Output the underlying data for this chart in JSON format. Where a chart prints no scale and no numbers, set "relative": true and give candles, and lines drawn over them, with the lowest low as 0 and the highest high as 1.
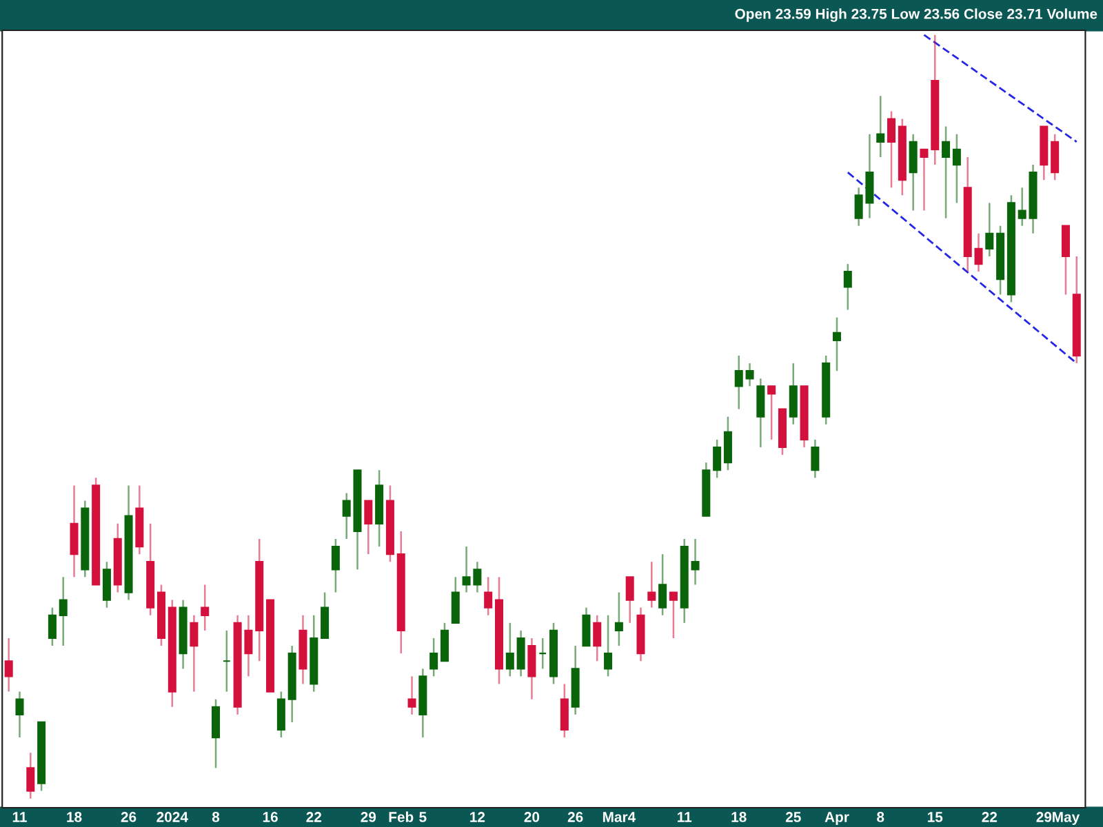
{
  "chart_data": {
    "type": "candlestick",
    "relative": true,
    "grid": false,
    "legend": false,
    "annotations": [
      "Open 23.59 High 23.75 Low 23.56 Close 23.71 Volume"
    ],
    "categories": [
      null,
      "11",
      null,
      null,
      null,
      null,
      "18",
      null,
      null,
      null,
      null,
      "26",
      null,
      null,
      null,
      "2024",
      null,
      null,
      null,
      "8",
      null,
      null,
      null,
      null,
      "16",
      null,
      null,
      null,
      "22",
      null,
      null,
      null,
      null,
      "29",
      null,
      null,
      "Feb",
      null,
      "5",
      null,
      null,
      null,
      null,
      "12",
      null,
      null,
      null,
      null,
      "20",
      null,
      null,
      null,
      "26",
      null,
      null,
      null,
      "Mar4",
      null,
      null,
      null,
      null,
      null,
      "11",
      null,
      null,
      null,
      null,
      "18",
      null,
      null,
      null,
      null,
      "25",
      null,
      null,
      null,
      "Apr",
      null,
      null,
      null,
      "8",
      null,
      null,
      null,
      null,
      "15",
      null,
      null,
      null,
      null,
      "22",
      null,
      null,
      null,
      null,
      "29",
      null,
      "May",
      null
    ],
    "ohlc": [
      [
        0.18,
        0.21,
        0.14,
        0.16
      ],
      [
        0.11,
        0.14,
        0.08,
        0.13
      ],
      [
        0.04,
        0.06,
        0,
        0.01
      ],
      [
        0.02,
        0.1,
        0.01,
        0.1
      ],
      [
        0.21,
        0.25,
        0.2,
        0.24
      ],
      [
        0.24,
        0.29,
        0.2,
        0.26
      ],
      [
        0.36,
        0.41,
        0.29,
        0.32
      ],
      [
        0.3,
        0.39,
        0.29,
        0.38
      ],
      [
        0.41,
        0.42,
        0.28,
        0.28
      ],
      [
        0.26,
        0.31,
        0.25,
        0.3
      ],
      [
        0.34,
        0.36,
        0.27,
        0.28
      ],
      [
        0.27,
        0.41,
        0.26,
        0.37
      ],
      [
        0.38,
        0.41,
        0.32,
        0.33
      ],
      [
        0.31,
        0.36,
        0.24,
        0.25
      ],
      [
        0.27,
        0.28,
        0.2,
        0.21
      ],
      [
        0.25,
        0.26,
        0.12,
        0.14
      ],
      [
        0.19,
        0.26,
        0.17,
        0.25
      ],
      [
        0.23,
        0.24,
        0.14,
        0.2
      ],
      [
        0.25,
        0.28,
        0.22,
        0.24
      ],
      [
        0.08,
        0.13,
        0.04,
        0.12
      ],
      [
        0.18,
        0.22,
        0.14,
        0.18
      ],
      [
        0.23,
        0.24,
        0.11,
        0.12
      ],
      [
        0.22,
        0.24,
        0.16,
        0.19
      ],
      [
        0.31,
        0.34,
        0.18,
        0.22
      ],
      [
        0.26,
        0.26,
        0.14,
        0.14
      ],
      [
        0.09,
        0.14,
        0.08,
        0.13
      ],
      [
        0.13,
        0.2,
        0.1,
        0.19
      ],
      [
        0.22,
        0.24,
        0.15,
        0.17
      ],
      [
        0.15,
        0.24,
        0.14,
        0.21
      ],
      [
        0.21,
        0.27,
        0.21,
        0.25
      ],
      [
        0.3,
        0.34,
        0.27,
        0.33
      ],
      [
        0.37,
        0.4,
        0.34,
        0.39
      ],
      [
        0.35,
        0.43,
        0.3,
        0.43
      ],
      [
        0.39,
        0.39,
        0.32,
        0.36
      ],
      [
        0.36,
        0.43,
        0.33,
        0.41
      ],
      [
        0.39,
        0.41,
        0.31,
        0.32
      ],
      [
        0.32,
        0.35,
        0.19,
        0.22
      ],
      [
        0.13,
        0.16,
        0.11,
        0.12
      ],
      [
        0.11,
        0.17,
        0.08,
        0.16
      ],
      [
        0.17,
        0.21,
        0.16,
        0.19
      ],
      [
        0.18,
        0.23,
        0.18,
        0.22
      ],
      [
        0.23,
        0.29,
        0.23,
        0.27
      ],
      [
        0.28,
        0.33,
        0.27,
        0.29
      ],
      [
        0.28,
        0.31,
        0.27,
        0.3
      ],
      [
        0.27,
        0.29,
        0.24,
        0.25
      ],
      [
        0.26,
        0.29,
        0.15,
        0.17
      ],
      [
        0.17,
        0.23,
        0.16,
        0.19
      ],
      [
        0.17,
        0.22,
        0.16,
        0.21
      ],
      [
        0.2,
        0.21,
        0.13,
        0.16
      ],
      [
        0.19,
        0.21,
        0.17,
        0.19
      ],
      [
        0.16,
        0.23,
        0.15,
        0.22
      ],
      [
        0.13,
        0.15,
        0.08,
        0.09
      ],
      [
        0.12,
        0.2,
        0.11,
        0.17
      ],
      [
        0.2,
        0.25,
        0.2,
        0.24
      ],
      [
        0.23,
        0.24,
        0.18,
        0.2
      ],
      [
        0.17,
        0.24,
        0.16,
        0.19
      ],
      [
        0.22,
        0.27,
        0.2,
        0.23
      ],
      [
        0.29,
        0.29,
        0.23,
        0.26
      ],
      [
        0.24,
        0.25,
        0.18,
        0.19
      ],
      [
        0.27,
        0.31,
        0.25,
        0.26
      ],
      [
        0.25,
        0.32,
        0.24,
        0.28
      ],
      [
        0.27,
        0.27,
        0.21,
        0.26
      ],
      [
        0.25,
        0.34,
        0.23,
        0.33
      ],
      [
        0.3,
        0.34,
        0.28,
        0.31
      ],
      [
        0.37,
        0.44,
        0.37,
        0.43
      ],
      [
        0.43,
        0.47,
        0.42,
        0.46
      ],
      [
        0.44,
        0.5,
        0.43,
        0.48
      ],
      [
        0.54,
        0.58,
        0.51,
        0.56
      ],
      [
        0.55,
        0.57,
        0.54,
        0.56
      ],
      [
        0.5,
        0.55,
        0.46,
        0.54
      ],
      [
        0.54,
        0.54,
        0.47,
        0.53
      ],
      [
        0.51,
        0.51,
        0.45,
        0.46
      ],
      [
        0.5,
        0.57,
        0.49,
        0.54
      ],
      [
        0.54,
        0.54,
        0.46,
        0.47
      ],
      [
        0.43,
        0.47,
        0.42,
        0.46
      ],
      [
        0.5,
        0.58,
        0.49,
        0.57
      ],
      [
        0.6,
        0.63,
        0.56,
        0.61
      ],
      [
        0.67,
        0.7,
        0.64,
        0.69
      ],
      [
        0.76,
        0.8,
        0.75,
        0.79
      ],
      [
        0.78,
        0.87,
        0.76,
        0.82
      ],
      [
        0.86,
        0.92,
        0.84,
        0.87
      ],
      [
        0.89,
        0.9,
        0.8,
        0.86
      ],
      [
        0.88,
        0.89,
        0.79,
        0.81
      ],
      [
        0.82,
        0.87,
        0.77,
        0.86
      ],
      [
        0.85,
        0.85,
        0.77,
        0.84
      ],
      [
        0.94,
        1,
        0.83,
        0.85
      ],
      [
        0.84,
        0.88,
        0.76,
        0.86
      ],
      [
        0.83,
        0.87,
        0.78,
        0.85
      ],
      [
        0.8,
        0.84,
        0.69,
        0.71
      ],
      [
        0.72,
        0.74,
        0.69,
        0.7
      ],
      [
        0.72,
        0.78,
        0.71,
        0.74
      ],
      [
        0.68,
        0.75,
        0.66,
        0.74
      ],
      [
        0.66,
        0.79,
        0.65,
        0.78
      ],
      [
        0.76,
        0.8,
        0.75,
        0.77
      ],
      [
        0.76,
        0.83,
        0.74,
        0.82
      ],
      [
        0.88,
        0.88,
        0.81,
        0.83
      ],
      [
        0.86,
        0.87,
        0.81,
        0.82
      ],
      [
        0.75,
        0.75,
        0.66,
        0.71
      ],
      [
        0.66,
        0.71,
        0.57,
        0.58
      ]
    ],
    "colors": [
      "#d4103c",
      "#0a640a",
      "#d4103c",
      "#0a640a",
      "#0a640a",
      "#0a640a",
      "#d4103c",
      "#0a640a",
      "#d4103c",
      "#0a640a",
      "#d4103c",
      "#0a640a",
      "#d4103c",
      "#d4103c",
      "#d4103c",
      "#d4103c",
      "#0a640a",
      "#d4103c",
      "#d4103c",
      "#0a640a",
      "#0a640a",
      "#d4103c",
      "#d4103c",
      "#d4103c",
      "#d4103c",
      "#0a640a",
      "#0a640a",
      "#d4103c",
      "#0a640a",
      "#0a640a",
      "#0a640a",
      "#0a640a",
      "#0a640a",
      "#d4103c",
      "#0a640a",
      "#d4103c",
      "#d4103c",
      "#d4103c",
      "#0a640a",
      "#0a640a",
      "#0a640a",
      "#0a640a",
      "#0a640a",
      "#0a640a",
      "#d4103c",
      "#d4103c",
      "#0a640a",
      "#0a640a",
      "#d4103c",
      "#0a640a",
      "#0a640a",
      "#d4103c",
      "#0a640a",
      "#0a640a",
      "#d4103c",
      "#0a640a",
      "#0a640a",
      "#d4103c",
      "#d4103c",
      "#d4103c",
      "#0a640a",
      "#d4103c",
      "#0a640a",
      "#0a640a",
      "#0a640a",
      "#0a640a",
      "#0a640a",
      "#0a640a",
      "#0a640a",
      "#0a640a",
      "#d4103c",
      "#d4103c",
      "#0a640a",
      "#d4103c",
      "#0a640a",
      "#0a640a",
      "#0a640a",
      "#0a640a",
      "#0a640a",
      "#0a640a",
      "#0a640a",
      "#d4103c",
      "#d4103c",
      "#0a640a",
      "#d4103c",
      "#d4103c",
      "#0a640a",
      "#0a640a",
      "#d4103c",
      "#d4103c",
      "#0a640a",
      "#0a640a",
      "#0a640a",
      "#0a640a",
      "#0a640a",
      "#d4103c",
      "#d4103c",
      "#d4103c",
      "#d4103c"
    ],
    "series": [
      {
        "type": "line",
        "values": [
          null,
          null,
          null,
          null,
          null,
          null,
          null,
          null,
          null,
          null,
          null,
          null,
          null,
          null,
          null,
          null,
          null,
          null,
          null,
          null,
          null,
          null,
          null,
          null,
          null,
          null,
          null,
          null,
          null,
          null,
          null,
          null,
          null,
          null,
          null,
          null,
          null,
          null,
          null,
          null,
          null,
          null,
          null,
          null,
          null,
          null,
          null,
          null,
          null,
          null,
          null,
          null,
          null,
          null,
          null,
          null,
          null,
          null,
          null,
          null,
          null,
          null,
          null,
          null,
          null,
          null,
          null,
          null,
          null,
          null,
          null,
          null,
          null,
          null,
          null,
          null,
          null,
          null,
          null,
          null,
          null,
          null,
          null,
          null,
          1.0,
          null,
          null,
          null,
          null,
          null,
          null,
          null,
          null,
          null,
          null,
          null,
          null,
          null,
          0.86
        ],
        "color": "#2626e6",
        "line_style": "dashed"
      },
      {
        "type": "line",
        "values": [
          null,
          null,
          null,
          null,
          null,
          null,
          null,
          null,
          null,
          null,
          null,
          null,
          null,
          null,
          null,
          null,
          null,
          null,
          null,
          null,
          null,
          null,
          null,
          null,
          null,
          null,
          null,
          null,
          null,
          null,
          null,
          null,
          null,
          null,
          null,
          null,
          null,
          null,
          null,
          null,
          null,
          null,
          null,
          null,
          null,
          null,
          null,
          null,
          null,
          null,
          null,
          null,
          null,
          null,
          null,
          null,
          null,
          null,
          null,
          null,
          null,
          null,
          null,
          null,
          null,
          null,
          null,
          null,
          null,
          null,
          null,
          null,
          null,
          null,
          null,
          null,
          null,
          0.82,
          null,
          null,
          null,
          null,
          null,
          null,
          null,
          null,
          null,
          null,
          null,
          null,
          null,
          null,
          null,
          null,
          null,
          null,
          null,
          null,
          0.57
        ],
        "color": "#2626e6",
        "line_style": "dashed"
      }
    ]
  }
}
